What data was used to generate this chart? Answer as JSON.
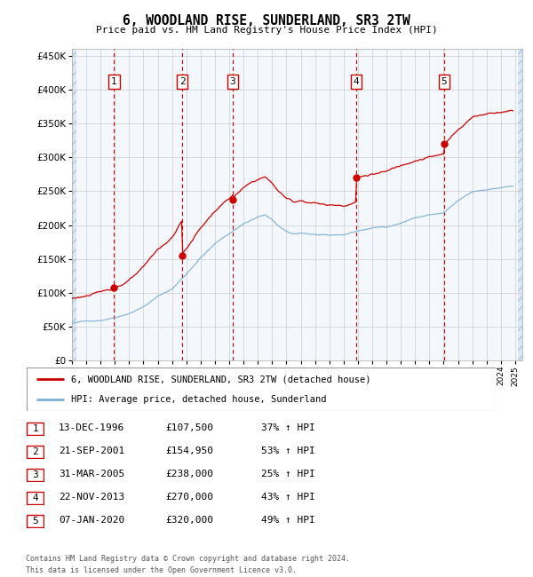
{
  "title": "6, WOODLAND RISE, SUNDERLAND, SR3 2TW",
  "subtitle": "Price paid vs. HM Land Registry's House Price Index (HPI)",
  "ylim": [
    0,
    460000
  ],
  "xlim_start": 1994.0,
  "xlim_end": 2025.5,
  "hpi_color": "#7bafd4",
  "price_color": "#cc0000",
  "transactions": [
    {
      "label": "1",
      "date": 1996.95,
      "price": 107500
    },
    {
      "label": "2",
      "date": 2001.72,
      "price": 154950
    },
    {
      "label": "3",
      "date": 2005.25,
      "price": 238000
    },
    {
      "label": "4",
      "date": 2013.89,
      "price": 270000
    },
    {
      "label": "5",
      "date": 2020.02,
      "price": 320000
    }
  ],
  "legend_entries": [
    "6, WOODLAND RISE, SUNDERLAND, SR3 2TW (detached house)",
    "HPI: Average price, detached house, Sunderland"
  ],
  "table_rows": [
    {
      "num": "1",
      "date": "13-DEC-1996",
      "price": "£107,500",
      "change": "37% ↑ HPI"
    },
    {
      "num": "2",
      "date": "21-SEP-2001",
      "price": "£154,950",
      "change": "53% ↑ HPI"
    },
    {
      "num": "3",
      "date": "31-MAR-2005",
      "price": "£238,000",
      "change": "25% ↑ HPI"
    },
    {
      "num": "4",
      "date": "22-NOV-2013",
      "price": "£270,000",
      "change": "43% ↑ HPI"
    },
    {
      "num": "5",
      "date": "07-JAN-2020",
      "price": "£320,000",
      "change": "49% ↑ HPI"
    }
  ],
  "footer": "Contains HM Land Registry data © Crown copyright and database right 2024.\nThis data is licensed under the Open Government Licence v3.0."
}
